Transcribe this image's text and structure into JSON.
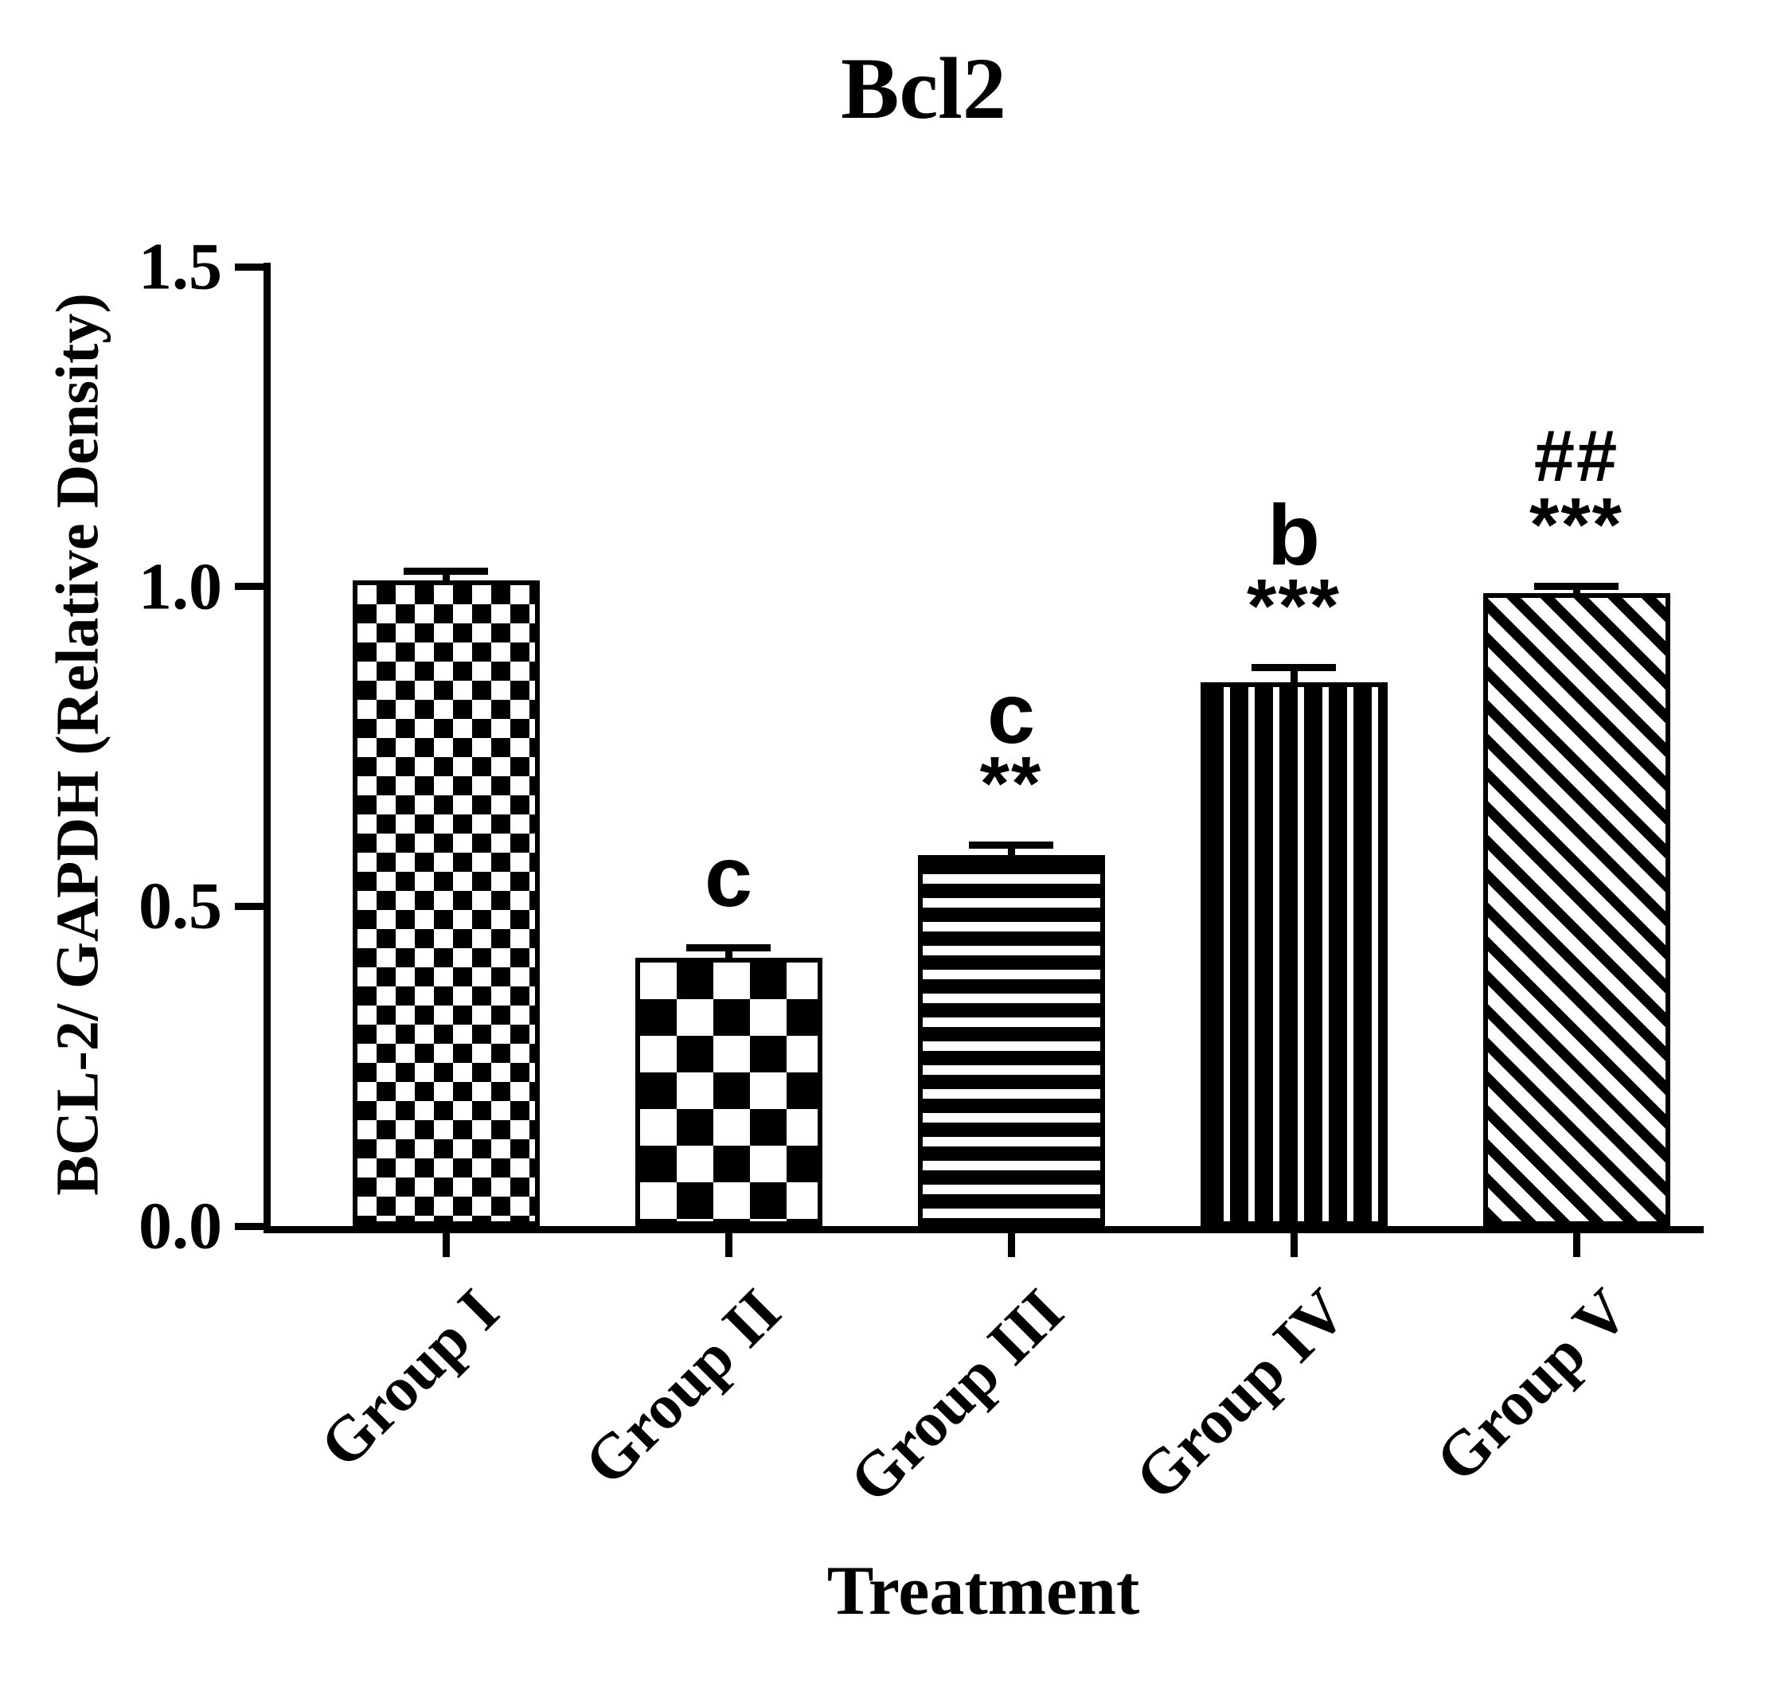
{
  "chart_data": {
    "type": "bar",
    "title": "Bcl2",
    "xlabel": "Treatment",
    "ylabel": "BCL-2/ GAPDH (Relative Density)",
    "categories": [
      "Group I",
      "Group II",
      "Group III",
      "Group IV",
      "Group V"
    ],
    "values": [
      1.01,
      0.42,
      0.58,
      0.85,
      0.99
    ],
    "errors": [
      0.008,
      0.01,
      0.01,
      0.018,
      0.005
    ],
    "annotations": [
      [],
      [
        "c"
      ],
      [
        "c",
        "**"
      ],
      [
        "b",
        "***"
      ],
      [
        "##",
        "***"
      ]
    ],
    "ytick_values": [
      0,
      0.5,
      1.0,
      1.5
    ],
    "ytick_labels": [
      "0.0",
      "0.5",
      "1.0",
      "1.5"
    ],
    "ylim": [
      0,
      1.5
    ],
    "grid": "off",
    "legend": "none",
    "bar_color": "#000000",
    "background_color": "#ffffff",
    "patterns": [
      "fine-checker",
      "coarse-checker",
      "h-stripes",
      "v-stripes",
      "diag-stripes"
    ]
  }
}
